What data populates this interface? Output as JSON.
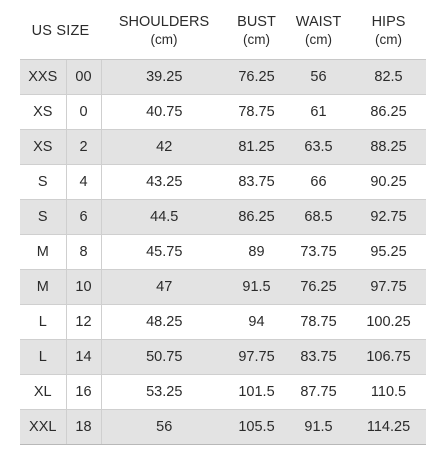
{
  "table": {
    "headers": {
      "us_size": "US SIZE",
      "shoulders": "SHOULDERS",
      "bust": "BUST",
      "waist": "WAIST",
      "hips": "HIPS",
      "unit": "(cm)"
    },
    "rows": [
      {
        "letter": "XXS",
        "num": "00",
        "shoulders": "39.25",
        "bust": "76.25",
        "waist": "56",
        "hips": "82.5"
      },
      {
        "letter": "XS",
        "num": "0",
        "shoulders": "40.75",
        "bust": "78.75",
        "waist": "61",
        "hips": "86.25"
      },
      {
        "letter": "XS",
        "num": "2",
        "shoulders": "42",
        "bust": "81.25",
        "waist": "63.5",
        "hips": "88.25"
      },
      {
        "letter": "S",
        "num": "4",
        "shoulders": "43.25",
        "bust": "83.75",
        "waist": "66",
        "hips": "90.25"
      },
      {
        "letter": "S",
        "num": "6",
        "shoulders": "44.5",
        "bust": "86.25",
        "waist": "68.5",
        "hips": "92.75"
      },
      {
        "letter": "M",
        "num": "8",
        "shoulders": "45.75",
        "bust": "89",
        "waist": "73.75",
        "hips": "95.25"
      },
      {
        "letter": "M",
        "num": "10",
        "shoulders": "47",
        "bust": "91.5",
        "waist": "76.25",
        "hips": "97.75"
      },
      {
        "letter": "L",
        "num": "12",
        "shoulders": "48.25",
        "bust": "94",
        "waist": "78.75",
        "hips": "100.25"
      },
      {
        "letter": "L",
        "num": "14",
        "shoulders": "50.75",
        "bust": "97.75",
        "waist": "83.75",
        "hips": "106.75"
      },
      {
        "letter": "XL",
        "num": "16",
        "shoulders": "53.25",
        "bust": "101.5",
        "waist": "87.75",
        "hips": "110.5"
      },
      {
        "letter": "XXL",
        "num": "18",
        "shoulders": "56",
        "bust": "105.5",
        "waist": "91.5",
        "hips": "114.25"
      }
    ]
  },
  "colors": {
    "shaded_row": "#e3e3e3",
    "text": "#2b2b2b"
  }
}
